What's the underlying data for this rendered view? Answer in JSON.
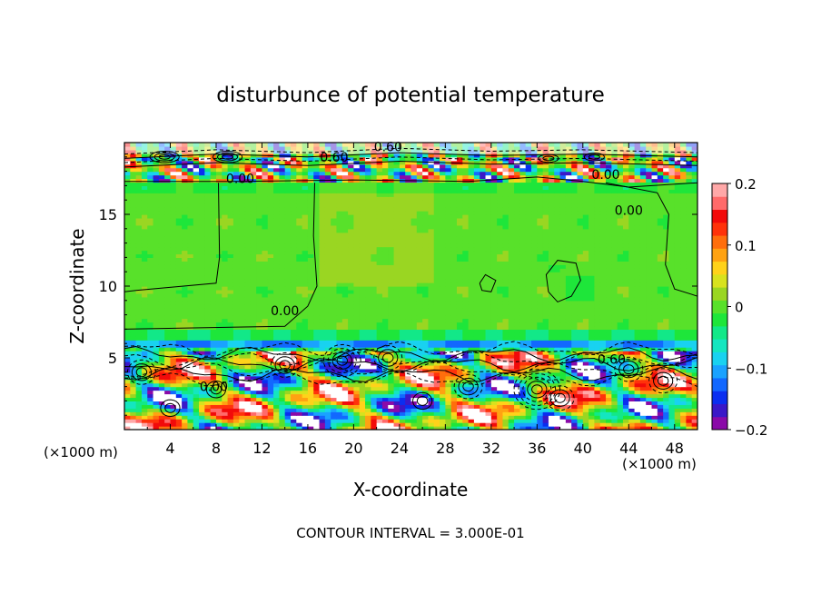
{
  "chart_data": {
    "type": "heatmap",
    "title": "disturbunce of potential temperature",
    "xlabel": "X-coordinate",
    "ylabel": "Z-coordinate",
    "x_unit": "(×1000 m)",
    "y_unit": "(×1000 m)",
    "xlim": [
      0,
      50
    ],
    "ylim": [
      0,
      20
    ],
    "x_ticks": [
      4,
      8,
      12,
      16,
      20,
      24,
      28,
      32,
      36,
      40,
      44,
      48
    ],
    "y_ticks": [
      5,
      10,
      15
    ],
    "colorbar": {
      "range": [
        -0.2,
        0.2
      ],
      "tick_values": [
        -0.2,
        -0.1,
        0,
        0.1,
        0.2
      ],
      "tick_labels": [
        "−0.2",
        "−0.1",
        "0",
        "0.1",
        "0.2"
      ],
      "colors": [
        "#8a0aa8",
        "#3a18c8",
        "#0a2ef0",
        "#1268ff",
        "#1aa2ff",
        "#19d2f0",
        "#14e6c0",
        "#12e888",
        "#1ee63a",
        "#58e12a",
        "#9ad622",
        "#d8e21e",
        "#ffd21a",
        "#ffa212",
        "#ff6e0c",
        "#ff320a",
        "#f20a0a",
        "#ff6a6a",
        "#ffa8a8"
      ]
    },
    "contour_labels": [
      {
        "text": "0.60",
        "x": 23.0,
        "y": 19.7
      },
      {
        "text": "0.60",
        "x": 18.3,
        "y": 19.0
      },
      {
        "text": "0.00",
        "x": 10.1,
        "y": 17.5
      },
      {
        "text": "0.00",
        "x": 42.0,
        "y": 17.8
      },
      {
        "text": "0.00",
        "x": 44.0,
        "y": 15.3
      },
      {
        "text": "0.00",
        "x": 14.0,
        "y": 8.3
      },
      {
        "text": "0.60",
        "x": 42.5,
        "y": 4.9
      },
      {
        "text": "0.00",
        "x": 7.8,
        "y": 3.0
      }
    ],
    "contour_interval": "CONTOUR INTERVAL = 3.000E-01",
    "bands": [
      {
        "z_from": 19.0,
        "z_to": 20.0,
        "value": "mixed"
      },
      {
        "z_from": 17.3,
        "z_to": 19.0,
        "value": "mixed"
      },
      {
        "z_from": 7.0,
        "z_to": 17.3,
        "value": 0.0
      },
      {
        "z_from": 6.3,
        "z_to": 7.0,
        "value": -0.03
      },
      {
        "z_from": 5.8,
        "z_to": 6.3,
        "value": -0.11
      },
      {
        "z_from": 5.4,
        "z_to": 5.8,
        "value": -0.05
      },
      {
        "z_from": 0.0,
        "z_to": 5.4,
        "value": "mixed"
      }
    ]
  }
}
